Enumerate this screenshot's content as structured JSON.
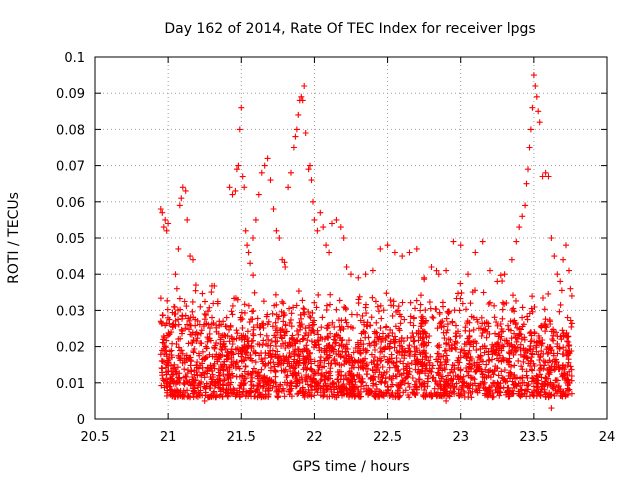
{
  "chart_data": {
    "type": "scatter",
    "title": "Day 162 of 2014, Rate Of TEC Index for receiver lpgs",
    "xlabel": "GPS time / hours",
    "ylabel": "ROTI / TECUs",
    "xlim": [
      20.5,
      24
    ],
    "ylim": [
      0,
      0.1
    ],
    "xticks": [
      20.5,
      21,
      21.5,
      22,
      22.5,
      23,
      23.5,
      24
    ],
    "xtick_labels": [
      "20.5",
      "21",
      "21.5",
      "22",
      "22.5",
      "23",
      "23.5",
      "24"
    ],
    "yticks": [
      0,
      0.01,
      0.02,
      0.03,
      0.04,
      0.05,
      0.06,
      0.07,
      0.08,
      0.09,
      0.1
    ],
    "ytick_labels": [
      "0",
      "0.01",
      "0.02",
      "0.03",
      "0.04",
      "0.05",
      "0.06",
      "0.07",
      "0.08",
      "0.09",
      "0.1"
    ],
    "grid": true,
    "marker": "+",
    "color": "#ff0000",
    "data_x_range": [
      20.95,
      23.76
    ],
    "series": [
      {
        "name": "ROTI",
        "points": [
          [
            20.95,
            0.058
          ],
          [
            20.96,
            0.057
          ],
          [
            20.97,
            0.053
          ],
          [
            20.98,
            0.055
          ],
          [
            20.99,
            0.052
          ],
          [
            21.0,
            0.054
          ],
          [
            20.95,
            0.027
          ],
          [
            20.97,
            0.021
          ],
          [
            20.99,
            0.015
          ],
          [
            21.01,
            0.009
          ],
          [
            21.02,
            0.024
          ],
          [
            21.04,
            0.031
          ],
          [
            21.05,
            0.04
          ],
          [
            21.06,
            0.036
          ],
          [
            21.07,
            0.047
          ],
          [
            21.08,
            0.059
          ],
          [
            21.09,
            0.061
          ],
          [
            21.1,
            0.064
          ],
          [
            21.12,
            0.063
          ],
          [
            21.13,
            0.055
          ],
          [
            21.15,
            0.045
          ],
          [
            21.17,
            0.044
          ],
          [
            21.19,
            0.037
          ],
          [
            21.22,
            0.031
          ],
          [
            21.25,
            0.029
          ],
          [
            21.3,
            0.028
          ],
          [
            21.35,
            0.027
          ],
          [
            21.4,
            0.028
          ],
          [
            21.42,
            0.064
          ],
          [
            21.44,
            0.062
          ],
          [
            21.46,
            0.063
          ],
          [
            21.47,
            0.069
          ],
          [
            21.48,
            0.07
          ],
          [
            21.49,
            0.08
          ],
          [
            21.5,
            0.086
          ],
          [
            21.51,
            0.067
          ],
          [
            21.52,
            0.064
          ],
          [
            21.53,
            0.052
          ],
          [
            21.54,
            0.048
          ],
          [
            21.55,
            0.046
          ],
          [
            21.56,
            0.043
          ],
          [
            21.58,
            0.05
          ],
          [
            21.6,
            0.055
          ],
          [
            21.62,
            0.062
          ],
          [
            21.64,
            0.068
          ],
          [
            21.66,
            0.07
          ],
          [
            21.68,
            0.072
          ],
          [
            21.7,
            0.066
          ],
          [
            21.72,
            0.058
          ],
          [
            21.74,
            0.052
          ],
          [
            21.76,
            0.05
          ],
          [
            21.78,
            0.044
          ],
          [
            21.8,
            0.042
          ],
          [
            21.82,
            0.064
          ],
          [
            21.84,
            0.068
          ],
          [
            21.86,
            0.075
          ],
          [
            21.87,
            0.078
          ],
          [
            21.88,
            0.08
          ],
          [
            21.89,
            0.084
          ],
          [
            21.9,
            0.088
          ],
          [
            21.91,
            0.089
          ],
          [
            21.92,
            0.088
          ],
          [
            21.93,
            0.092
          ],
          [
            21.94,
            0.079
          ],
          [
            21.96,
            0.069
          ],
          [
            21.97,
            0.07
          ],
          [
            21.98,
            0.066
          ],
          [
            21.99,
            0.06
          ],
          [
            22.0,
            0.055
          ],
          [
            22.02,
            0.052
          ],
          [
            22.04,
            0.057
          ],
          [
            22.06,
            0.053
          ],
          [
            22.08,
            0.048
          ],
          [
            22.1,
            0.046
          ],
          [
            22.12,
            0.054
          ],
          [
            22.15,
            0.055
          ],
          [
            22.18,
            0.053
          ],
          [
            22.2,
            0.05
          ],
          [
            22.22,
            0.042
          ],
          [
            22.25,
            0.04
          ],
          [
            22.3,
            0.039
          ],
          [
            22.35,
            0.04
          ],
          [
            22.4,
            0.041
          ],
          [
            22.45,
            0.047
          ],
          [
            22.5,
            0.048
          ],
          [
            22.55,
            0.046
          ],
          [
            22.6,
            0.045
          ],
          [
            22.65,
            0.046
          ],
          [
            22.7,
            0.047
          ],
          [
            22.75,
            0.039
          ],
          [
            22.8,
            0.042
          ],
          [
            22.85,
            0.04
          ],
          [
            22.9,
            0.041
          ],
          [
            22.95,
            0.049
          ],
          [
            23.0,
            0.048
          ],
          [
            23.05,
            0.04
          ],
          [
            23.1,
            0.046
          ],
          [
            23.15,
            0.049
          ],
          [
            23.2,
            0.041
          ],
          [
            23.25,
            0.038
          ],
          [
            23.3,
            0.04
          ],
          [
            23.35,
            0.044
          ],
          [
            23.38,
            0.049
          ],
          [
            23.4,
            0.053
          ],
          [
            23.42,
            0.056
          ],
          [
            23.44,
            0.059
          ],
          [
            23.45,
            0.065
          ],
          [
            23.46,
            0.069
          ],
          [
            23.47,
            0.075
          ],
          [
            23.48,
            0.08
          ],
          [
            23.49,
            0.086
          ],
          [
            23.5,
            0.095
          ],
          [
            23.51,
            0.092
          ],
          [
            23.52,
            0.089
          ],
          [
            23.53,
            0.085
          ],
          [
            23.54,
            0.082
          ],
          [
            23.56,
            0.067
          ],
          [
            23.58,
            0.068
          ],
          [
            23.6,
            0.067
          ],
          [
            23.62,
            0.05
          ],
          [
            23.64,
            0.045
          ],
          [
            23.66,
            0.04
          ],
          [
            23.68,
            0.038
          ],
          [
            23.7,
            0.044
          ],
          [
            23.72,
            0.048
          ],
          [
            23.74,
            0.041
          ],
          [
            23.75,
            0.036
          ],
          [
            23.76,
            0.034
          ],
          [
            21.05,
            0.013
          ],
          [
            21.1,
            0.018
          ],
          [
            21.15,
            0.006
          ],
          [
            21.2,
            0.012
          ],
          [
            21.25,
            0.005
          ],
          [
            21.3,
            0.014
          ],
          [
            21.35,
            0.017
          ],
          [
            21.4,
            0.008
          ],
          [
            21.45,
            0.022
          ],
          [
            21.5,
            0.01
          ],
          [
            21.55,
            0.02
          ],
          [
            21.6,
            0.013
          ],
          [
            21.65,
            0.009
          ],
          [
            21.7,
            0.018
          ],
          [
            21.75,
            0.006
          ],
          [
            21.8,
            0.021
          ],
          [
            21.85,
            0.012
          ],
          [
            21.9,
            0.01
          ],
          [
            21.95,
            0.019
          ],
          [
            22.0,
            0.013
          ],
          [
            22.05,
            0.011
          ],
          [
            22.1,
            0.017
          ],
          [
            22.15,
            0.009
          ],
          [
            22.2,
            0.02
          ],
          [
            22.25,
            0.012
          ],
          [
            22.3,
            0.008
          ],
          [
            22.35,
            0.019
          ],
          [
            22.4,
            0.011
          ],
          [
            22.45,
            0.016
          ],
          [
            22.5,
            0.009
          ],
          [
            22.55,
            0.021
          ],
          [
            22.6,
            0.01
          ],
          [
            22.65,
            0.014
          ],
          [
            22.7,
            0.019
          ],
          [
            22.75,
            0.008
          ],
          [
            22.8,
            0.013
          ],
          [
            22.85,
            0.018
          ],
          [
            22.9,
            0.005
          ],
          [
            22.95,
            0.011
          ],
          [
            23.0,
            0.017
          ],
          [
            23.05,
            0.009
          ],
          [
            23.1,
            0.013
          ],
          [
            23.15,
            0.02
          ],
          [
            23.2,
            0.008
          ],
          [
            23.25,
            0.014
          ],
          [
            23.3,
            0.011
          ],
          [
            23.35,
            0.019
          ],
          [
            23.4,
            0.007
          ],
          [
            23.45,
            0.012
          ],
          [
            23.5,
            0.009
          ],
          [
            23.55,
            0.014
          ],
          [
            23.6,
            0.006
          ],
          [
            23.62,
            0.003
          ],
          [
            23.65,
            0.008
          ],
          [
            23.7,
            0.012
          ],
          [
            23.72,
            0.019
          ],
          [
            23.74,
            0.01
          ],
          [
            23.76,
            0.007
          ]
        ]
      }
    ]
  }
}
